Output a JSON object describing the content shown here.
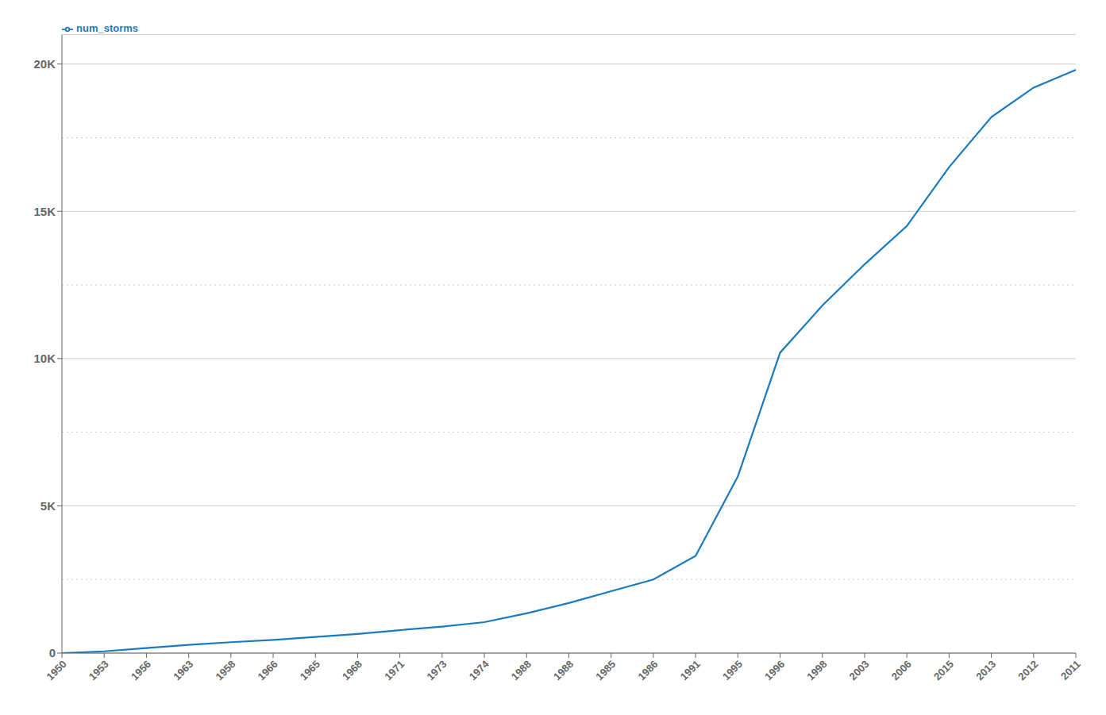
{
  "chart_data": {
    "type": "line",
    "categories": [
      "1950",
      "1953",
      "1956",
      "1963",
      "1958",
      "1966",
      "1965",
      "1968",
      "1971",
      "1973",
      "1974",
      "1988",
      "1988",
      "1985",
      "1986",
      "1991",
      "1995",
      "1996",
      "1998",
      "2003",
      "2006",
      "2015",
      "2013",
      "2012",
      "2011"
    ],
    "series": [
      {
        "name": "num_storms",
        "color": "#1a7abf",
        "values": [
          0,
          60,
          170,
          280,
          370,
          450,
          550,
          650,
          780,
          900,
          1050,
          1350,
          1700,
          2100,
          2500,
          3300,
          6000,
          10200,
          11800,
          13200,
          14500,
          16500,
          18200,
          19200,
          19800
        ]
      }
    ],
    "ylim": [
      0,
      21000
    ],
    "yticks": [
      {
        "value": 0,
        "label": "0"
      },
      {
        "value": 5000,
        "label": "5K"
      },
      {
        "value": 10000,
        "label": "10K"
      },
      {
        "value": 15000,
        "label": "15K"
      },
      {
        "value": 20000,
        "label": "20K"
      }
    ],
    "minor_gridlines": [
      2500,
      7500,
      12500,
      17500
    ],
    "grid": true,
    "legend": "upper left"
  }
}
